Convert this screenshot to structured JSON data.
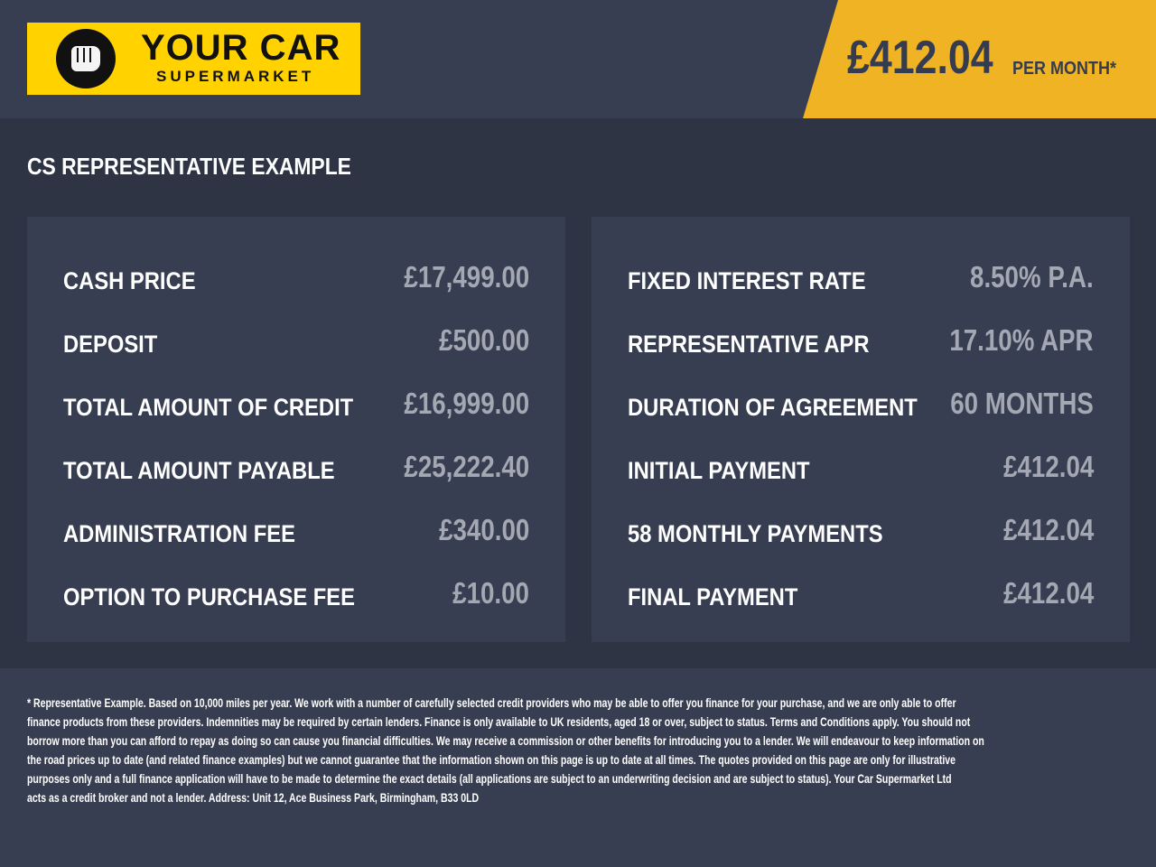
{
  "brand": {
    "logo_line1": "YOUR CAR",
    "logo_line2": "SUPERMARKET",
    "logo_color": "#ffd200"
  },
  "header": {
    "monthly_price": "£412.04",
    "per_month_label": "PER MONTH*",
    "accent": "#f0b323"
  },
  "section_title": "CS REPRESENTATIVE EXAMPLE",
  "left_panel": [
    {
      "label": "CASH PRICE",
      "value": "£17,499.00"
    },
    {
      "label": "DEPOSIT",
      "value": "£500.00"
    },
    {
      "label": "TOTAL AMOUNT OF CREDIT",
      "value": "£16,999.00"
    },
    {
      "label": "TOTAL AMOUNT PAYABLE",
      "value": "£25,222.40"
    },
    {
      "label": "ADMINISTRATION FEE",
      "value": "£340.00"
    },
    {
      "label": "OPTION TO PURCHASE FEE",
      "value": "£10.00"
    }
  ],
  "right_panel": [
    {
      "label": "FIXED INTEREST RATE",
      "value": "8.50% P.A."
    },
    {
      "label": "REPRESENTATIVE APR",
      "value": "17.10% APR"
    },
    {
      "label": "DURATION OF AGREEMENT",
      "value": "60 MONTHS"
    },
    {
      "label": "INITIAL PAYMENT",
      "value": "£412.04"
    },
    {
      "label": "58 MONTHLY PAYMENTS",
      "value": "£412.04"
    },
    {
      "label": "FINAL PAYMENT",
      "value": "£412.04"
    }
  ],
  "disclaimer_lines": [
    "* Representative Example. Based on 10,000 miles per year. We work with a number of carefully selected credit providers who may be able to offer you finance for your purchase, and we are only able to offer",
    "finance products from these providers. Indemnities may be required by certain lenders. Finance is only available to UK residents, aged 18 or over, subject to status. Terms and Conditions apply. You should not",
    "borrow more than you can afford to repay as doing so can cause you financial difficulties. We may receive a commission or other benefits for introducing you to a lender. We will endeavour to keep information on",
    "the road prices up to date (and related finance examples) but we cannot guarantee that the information shown on this page is up to date at all times. The quotes provided on this page are only for illustrative",
    "purposes only and a full finance application will have to be made to determine the exact details (all applications are subject to an underwriting decision and are subject to status). Your Car Supermarket Ltd",
    "acts as a credit broker and not a lender. Address: Unit 12, Ace Business Park, Birmingham, B33 0LD"
  ]
}
